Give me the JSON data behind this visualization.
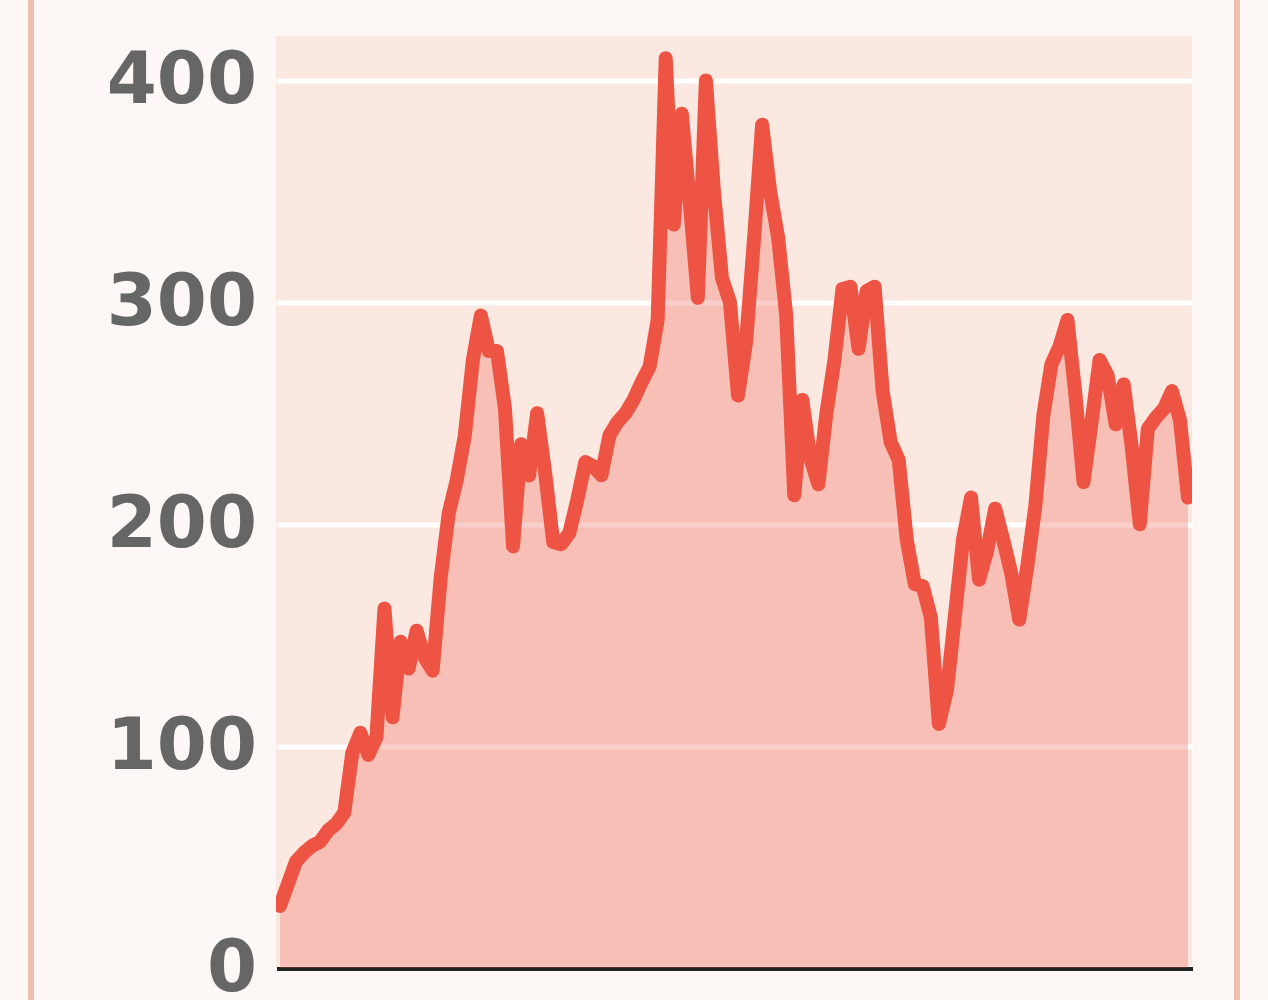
{
  "chart_data": {
    "type": "area",
    "color": "#ee5443",
    "categories": [
      null,
      null,
      null,
      null,
      null,
      null,
      null,
      null,
      null,
      null,
      null,
      null,
      null,
      null,
      null,
      null,
      null,
      null,
      null,
      null,
      null,
      null,
      null,
      null,
      null,
      null,
      null,
      null,
      null,
      null,
      null,
      null,
      null,
      null,
      null,
      null,
      null,
      null,
      null,
      null,
      null,
      null,
      null,
      null,
      null,
      null,
      null,
      null,
      null,
      null,
      null,
      null,
      null,
      null,
      null,
      null,
      null,
      null,
      null,
      null,
      null,
      null,
      null,
      null,
      null,
      null,
      null,
      null,
      null,
      null,
      null,
      null,
      null,
      null,
      null,
      null,
      null,
      null,
      null,
      null,
      null,
      null,
      null,
      null,
      null,
      null,
      null,
      null,
      null,
      null,
      null,
      null,
      null,
      null,
      null,
      null,
      null,
      null,
      null,
      null,
      null,
      null,
      null,
      null,
      null,
      null,
      null,
      null,
      null,
      null,
      null,
      null,
      null,
      null
    ],
    "values": [
      28,
      38,
      48,
      52,
      55,
      57,
      62,
      65,
      70,
      97,
      106,
      96,
      104,
      162,
      113,
      147,
      135,
      152,
      140,
      134,
      176,
      205,
      220,
      240,
      274,
      294,
      278,
      278,
      252,
      190,
      236,
      222,
      250,
      223,
      192,
      191,
      196,
      211,
      228,
      226,
      222,
      240,
      246,
      250,
      256,
      264,
      271,
      292,
      410,
      335,
      385,
      345,
      302,
      400,
      350,
      311,
      300,
      258,
      282,
      329,
      380,
      350,
      329,
      294,
      213,
      256,
      230,
      218,
      250,
      274,
      306,
      307,
      279,
      305,
      307,
      260,
      237,
      229,
      193,
      173,
      172,
      158,
      110,
      125,
      159,
      193,
      212,
      175,
      188,
      207,
      193,
      178,
      157,
      181,
      208,
      249,
      272,
      280,
      292,
      258,
      219,
      246,
      274,
      267,
      245,
      263,
      235,
      200,
      243,
      248,
      252,
      260,
      247,
      212
    ],
    "ylim": [
      0,
      420
    ],
    "yticks": [
      0,
      100,
      200,
      300,
      400
    ],
    "grid": "y",
    "tick_labels": "y"
  }
}
